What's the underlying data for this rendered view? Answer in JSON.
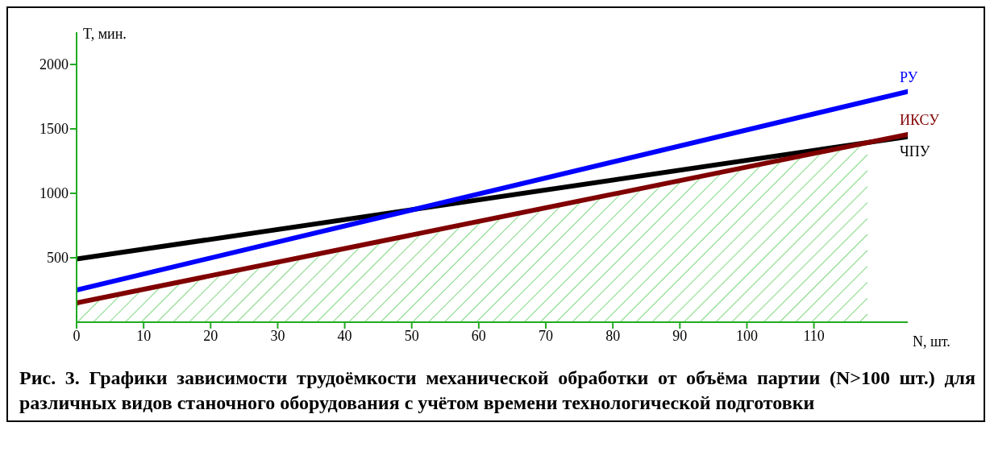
{
  "chart_data": {
    "type": "line",
    "xlabel": "N, шт.",
    "ylabel": "T, мин.",
    "xlim": [
      0,
      124
    ],
    "ylim": [
      0,
      2250
    ],
    "xticks": [
      0,
      10,
      20,
      30,
      40,
      50,
      60,
      70,
      80,
      90,
      100,
      110
    ],
    "yticks": [
      500,
      1000,
      1500,
      2000
    ],
    "grid": false,
    "legend": false,
    "marker": "none",
    "line_style": "solid",
    "series": [
      {
        "name": "РУ",
        "color": "#0000ff",
        "x": [
          0,
          124
        ],
        "values": [
          250,
          1790
        ]
      },
      {
        "name": "ИКСУ",
        "color": "#800000",
        "x": [
          0,
          124
        ],
        "values": [
          150,
          1457
        ]
      },
      {
        "name": "ЧПУ",
        "color": "#000000",
        "x": [
          0,
          124
        ],
        "values": [
          490,
          1440
        ]
      },
      {
        "type": "area",
        "color": "#00b000",
        "x": [
          0,
          118
        ],
        "values": [
          150,
          1394
        ]
      }
    ],
    "annotations": [
      "Рис.   3. Графики зависимости трудоёмкости механической  обработки от объёма партии (N>100 шт.) для различных видов станочного оборудования с учётом времени технологической подготовки"
    ]
  }
}
